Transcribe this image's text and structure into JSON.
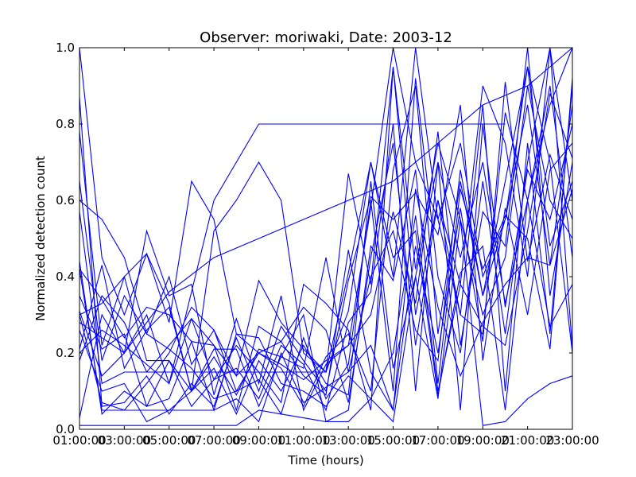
{
  "chart_data": {
    "type": "line",
    "title": "Observer: moriwaki, Date: 2003-12",
    "xlabel": "Time (hours)",
    "ylabel": "Normalized detection count",
    "xlim": [
      1,
      23
    ],
    "ylim": [
      0.0,
      1.0
    ],
    "x_tick_values": [
      1,
      3,
      5,
      7,
      9,
      11,
      13,
      15,
      17,
      19,
      21,
      23
    ],
    "x_tick_labels": [
      "01:00:00",
      "03:00:00",
      "05:00:00",
      "07:00:00",
      "09:00:00",
      "11:00:00",
      "13:00:00",
      "15:00:00",
      "17:00:00",
      "19:00:00",
      "21:00:00",
      "23:00:00"
    ],
    "y_tick_values": [
      0.0,
      0.2,
      0.4,
      0.6,
      0.8,
      1.0
    ],
    "y_tick_labels": [
      "0.0",
      "0.2",
      "0.4",
      "0.6",
      "0.8",
      "1.0"
    ],
    "grid": false,
    "line_color": "#0000ff",
    "series": [
      {
        "x": [
          1,
          2,
          3,
          4,
          5,
          6,
          7,
          8,
          9,
          10,
          11,
          12,
          13,
          14,
          15,
          16,
          17,
          18,
          19,
          20,
          21,
          22,
          23
        ],
        "y": [
          1.0,
          0.45,
          0.3,
          0.46,
          0.28,
          0.65,
          0.55,
          0.25,
          0.2,
          0.17,
          0.13,
          0.18,
          0.22,
          0.58,
          1.0,
          0.7,
          0.55,
          0.3,
          0.25,
          0.83,
          0.6,
          0.85,
          1.0
        ]
      },
      {
        "x": [
          1,
          2,
          3,
          4,
          5,
          6,
          7,
          8,
          9,
          10,
          11,
          12,
          13,
          14,
          15,
          16,
          17,
          18,
          19,
          20,
          21,
          22,
          23
        ],
        "y": [
          0.78,
          0.22,
          0.4,
          0.46,
          0.33,
          0.1,
          0.52,
          0.6,
          0.7,
          0.6,
          0.2,
          0.15,
          0.67,
          0.38,
          0.95,
          0.42,
          0.75,
          0.55,
          0.3,
          0.45,
          0.9,
          0.6,
          0.5
        ]
      },
      {
        "x": [
          1,
          2,
          3,
          4,
          5,
          6,
          7,
          8,
          9,
          10,
          11,
          12,
          13,
          14,
          15,
          16,
          17,
          18,
          19,
          20,
          21,
          22,
          23
        ],
        "y": [
          0.3,
          0.07,
          0.05,
          0.12,
          0.2,
          0.32,
          0.26,
          0.14,
          0.39,
          0.28,
          0.21,
          0.15,
          0.31,
          0.7,
          0.4,
          1.0,
          0.55,
          0.75,
          0.4,
          0.55,
          0.95,
          0.48,
          0.65
        ]
      },
      {
        "x": [
          1,
          2,
          3,
          4,
          5,
          6,
          7,
          8,
          9,
          10,
          11,
          12,
          13,
          14,
          15,
          16,
          17,
          18,
          19,
          20,
          21,
          22,
          23
        ],
        "y": [
          0.6,
          0.55,
          0.45,
          0.25,
          0.21,
          0.16,
          0.08,
          0.1,
          0.13,
          0.04,
          0.24,
          0.08,
          0.17,
          0.6,
          0.1,
          0.92,
          0.4,
          0.2,
          0.65,
          0.25,
          0.7,
          1.0,
          0.21
        ]
      },
      {
        "x": [
          1,
          2,
          3,
          4,
          5,
          6,
          7,
          8,
          9,
          10,
          11,
          12,
          13,
          14,
          15,
          16,
          17,
          18,
          19,
          20,
          21,
          22,
          23
        ],
        "y": [
          0.44,
          0.04,
          0.1,
          0.06,
          0.18,
          0.06,
          0.13,
          0.22,
          0.15,
          0.07,
          0.38,
          0.33,
          0.26,
          0.05,
          0.95,
          0.3,
          0.6,
          0.3,
          0.85,
          0.1,
          0.75,
          0.25,
          0.9
        ]
      },
      {
        "x": [
          1,
          2,
          3,
          4,
          5,
          6,
          7,
          8,
          9,
          10,
          11,
          12,
          13,
          14,
          15,
          16,
          17,
          18,
          19,
          20,
          21,
          22,
          23
        ],
        "y": [
          0.31,
          0.14,
          0.2,
          0.3,
          0.12,
          0.29,
          0.22,
          0.05,
          0.27,
          0.23,
          0.32,
          0.26,
          0.07,
          0.45,
          0.75,
          0.22,
          0.6,
          0.38,
          0.9,
          0.75,
          0.4,
          1.0,
          0.6
        ]
      },
      {
        "x": [
          1,
          2,
          3,
          4,
          5,
          6,
          7,
          8,
          9,
          10,
          11,
          12,
          13,
          14,
          15,
          16,
          17,
          18,
          19,
          20,
          21,
          22,
          23
        ],
        "y": [
          0.65,
          0.18,
          0.35,
          0.25,
          0.4,
          0.17,
          0.26,
          0.1,
          0.2,
          0.16,
          0.06,
          0.19,
          0.25,
          0.1,
          0.68,
          0.9,
          0.25,
          0.65,
          0.35,
          0.55,
          0.85,
          0.43,
          0.85
        ]
      },
      {
        "x": [
          1,
          2,
          3,
          4,
          5,
          6,
          7,
          8,
          9,
          10,
          11,
          12,
          13,
          14,
          15,
          16,
          17,
          18,
          19,
          20,
          21,
          22,
          23
        ],
        "y": [
          0.87,
          0.06,
          0.07,
          0.14,
          0.04,
          0.12,
          0.06,
          0.24,
          0.1,
          0.27,
          0.18,
          0.1,
          0.39,
          0.61,
          0.55,
          0.62,
          0.51,
          0.85,
          0.18,
          0.58,
          0.3,
          0.68,
          0.75
        ]
      },
      {
        "x": [
          1,
          2,
          3,
          4,
          5,
          6,
          7,
          8,
          9,
          10,
          11,
          12,
          13,
          14,
          15,
          16,
          17,
          18,
          19,
          20,
          21,
          22,
          23
        ],
        "y": [
          0.18,
          0.35,
          0.28,
          0.15,
          0.22,
          0.29,
          0.13,
          0.16,
          0.08,
          0.22,
          0.17,
          0.05,
          0.28,
          0.36,
          0.8,
          0.1,
          0.7,
          0.45,
          0.7,
          0.33,
          0.6,
          0.9,
          0.45
        ]
      },
      {
        "x": [
          1,
          2,
          3,
          4,
          5,
          6,
          7,
          8,
          9,
          10,
          11,
          12,
          13,
          14,
          15,
          16,
          17,
          18,
          19,
          20,
          21,
          22,
          23
        ],
        "y": [
          0.03,
          0.3,
          0.2,
          0.52,
          0.35,
          0.38,
          0.09,
          0.29,
          0.12,
          0.35,
          0.05,
          0.17,
          0.22,
          0.3,
          0.57,
          0.33,
          0.78,
          0.22,
          0.57,
          0.48,
          1.0,
          0.35,
          0.7
        ]
      },
      {
        "x": [
          1,
          2,
          3,
          4,
          5,
          6,
          7,
          8,
          9,
          10,
          11,
          12,
          13,
          14,
          15,
          16,
          17,
          18,
          19,
          20,
          21,
          22,
          23
        ],
        "y": [
          0.42,
          0.05,
          0.05,
          0.05,
          0.05,
          0.05,
          0.05,
          0.08,
          0.02,
          0.2,
          0.07,
          0.11,
          0.15,
          0.22,
          0.05,
          0.48,
          0.2,
          0.58,
          0.23,
          0.91,
          0.44,
          0.72,
          0.55
        ]
      },
      {
        "x": [
          1,
          2,
          3,
          4,
          5,
          6,
          7,
          8,
          9,
          10,
          11,
          12,
          13,
          14,
          15,
          16,
          17,
          18,
          19,
          20,
          21,
          22,
          23
        ],
        "y": [
          0.57,
          0.12,
          0.15,
          0.15,
          0.15,
          0.15,
          0.15,
          0.15,
          0.15,
          0.15,
          0.15,
          0.15,
          0.41,
          0.7,
          0.45,
          0.52,
          0.09,
          0.41,
          0.48,
          0.05,
          0.6,
          0.27,
          0.38
        ]
      },
      {
        "x": [
          1,
          2,
          3,
          4,
          5,
          6,
          7,
          8,
          9,
          10,
          11,
          12,
          13,
          14,
          15,
          16,
          17,
          18,
          19,
          20,
          21,
          22,
          23
        ],
        "y": [
          0.21,
          0.43,
          0.16,
          0.26,
          0.32,
          0.1,
          0.19,
          0.09,
          0.21,
          0.19,
          0.16,
          0.45,
          0.15,
          0.4,
          0.52,
          0.26,
          0.18,
          0.68,
          0.35,
          0.65,
          0.95,
          0.7,
          0.2
        ]
      },
      {
        "x": [
          1,
          2,
          3,
          4,
          5,
          6,
          7,
          8,
          9,
          10,
          11,
          12,
          13,
          14,
          15,
          16,
          17,
          18,
          19,
          20,
          21,
          22,
          23
        ],
        "y": [
          0.35,
          0.21,
          0.25,
          0.06,
          0.08,
          0.23,
          0.05,
          0.25,
          0.24,
          0.12,
          0.1,
          0.06,
          0.14,
          0.08,
          0.2,
          0.56,
          0.1,
          0.38,
          0.27,
          0.22,
          0.52,
          0.88,
          0.71
        ]
      },
      {
        "x": [
          1,
          2,
          3,
          4,
          5,
          6,
          7,
          8,
          9,
          10,
          11,
          12,
          13,
          14,
          15,
          16,
          17,
          18,
          19,
          20,
          21,
          22,
          23
        ],
        "y": [
          0.26,
          0.1,
          0.12,
          0.02,
          0.05,
          0.1,
          0.16,
          0.04,
          0.18,
          0.1,
          0.22,
          0.12,
          0.09,
          0.65,
          0.16,
          0.4,
          0.7,
          0.05,
          0.8,
          0.32,
          0.68,
          0.55,
          0.8
        ]
      },
      {
        "x": [
          1,
          2,
          3,
          4,
          5,
          6,
          7,
          8,
          9,
          10,
          11,
          12,
          13,
          14,
          15,
          16,
          17,
          18,
          19,
          20,
          21,
          22,
          23
        ],
        "y": [
          0.01,
          0.01,
          0.01,
          0.01,
          0.01,
          0.01,
          0.01,
          0.01,
          0.05,
          0.04,
          0.03,
          0.02,
          0.02,
          0.08,
          0.02,
          0.4,
          0.08,
          0.55,
          0.01,
          0.02,
          0.08,
          0.12,
          0.14
        ]
      },
      {
        "x": [
          1,
          2,
          3,
          4,
          5,
          6,
          7,
          8,
          9,
          10,
          11,
          12,
          13,
          14,
          15,
          16,
          17,
          18,
          19,
          20,
          21,
          22,
          23
        ],
        "y": [
          0.42,
          0.34,
          0.24,
          0.32,
          0.3,
          0.23,
          0.22,
          0.14,
          0.2,
          0.23,
          0.14,
          0.09,
          0.47,
          0.15,
          0.05,
          0.63,
          0.32,
          0.14,
          0.28,
          0.38,
          0.45,
          0.43,
          0.63
        ]
      },
      {
        "x": [
          1,
          2,
          3,
          4,
          5,
          6,
          7,
          8,
          9,
          10,
          11,
          12,
          13,
          14,
          15,
          16,
          17,
          18,
          19,
          20,
          21,
          22,
          23
        ],
        "y": [
          0.3,
          0.33,
          0.4,
          0.18,
          0.18,
          0.1,
          0.21,
          0.21,
          0.06,
          0.19,
          0.3,
          0.02,
          0.05,
          0.48,
          0.39,
          0.68,
          0.12,
          0.63,
          0.42,
          0.56,
          0.5,
          0.21,
          0.92
        ]
      },
      {
        "x": [
          1,
          2,
          3,
          5,
          7,
          9,
          11,
          13,
          15,
          17,
          19,
          20
        ],
        "y": [
          0.2,
          0.26,
          0.22,
          0.12,
          0.6,
          0.8,
          0.8,
          0.8,
          0.8,
          0.8,
          0.8,
          0.8
        ]
      },
      {
        "x": [
          1,
          3,
          5,
          7,
          9,
          11,
          13,
          15,
          17,
          19,
          21,
          22,
          23
        ],
        "y": [
          0.28,
          0.2,
          0.36,
          0.45,
          0.5,
          0.55,
          0.6,
          0.65,
          0.75,
          0.85,
          0.9,
          0.95,
          1.0
        ]
      }
    ]
  }
}
